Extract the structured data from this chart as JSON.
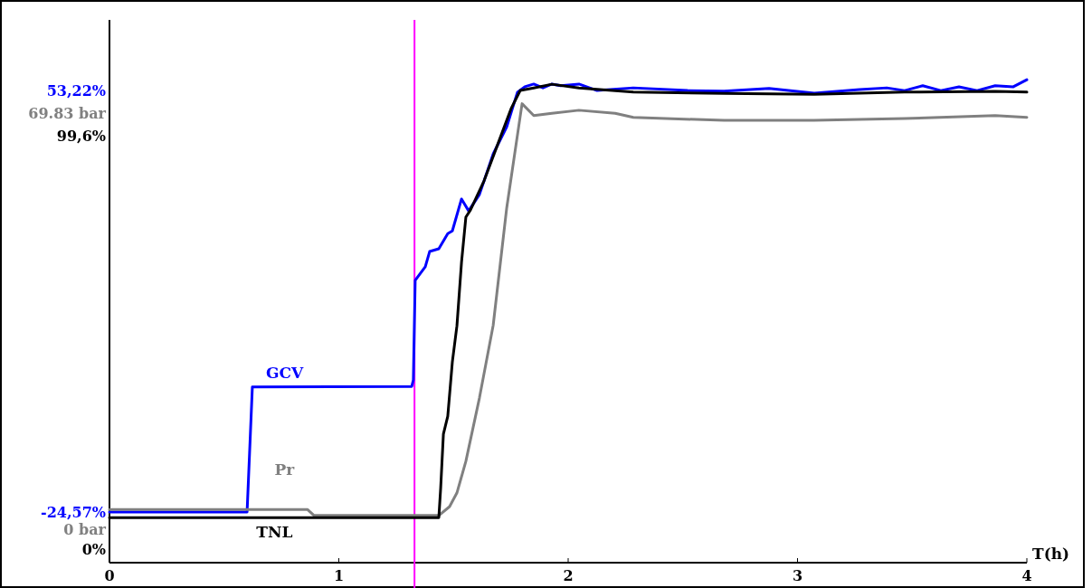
{
  "chart_data": {
    "type": "line",
    "xlabel": "T(h)",
    "xlim": [
      0,
      4
    ],
    "xticks": [
      0,
      1,
      2,
      3,
      4
    ],
    "ylim": [
      -33.58,
      66.24
    ],
    "yticks": [
      {
        "value": -24.57,
        "label": "-24,57%"
      },
      {
        "value": 53.22,
        "label": "53,22%"
      }
    ],
    "y2lim": [
      -5.31,
      85.46
    ],
    "y2ticks": [
      {
        "value": 0,
        "label": "0 bar"
      },
      {
        "value": 69.83,
        "label": "69.83 bar"
      }
    ],
    "y3lim": [
      -2.83,
      127.5
    ],
    "y3ticks": [
      {
        "value": 0,
        "label": "0%"
      },
      {
        "value": 99.6,
        "label": "99,6%"
      }
    ],
    "legend": false,
    "grid": false,
    "ref_lines": [
      {
        "axis": "x",
        "value": 1.33,
        "color": "#ff00ff"
      }
    ],
    "series": [
      {
        "name": "GCV",
        "color": "#0000ff",
        "x": [
          0,
          0.6,
          0.623,
          1.318,
          1.325,
          1.333,
          1.377,
          1.396,
          1.436,
          1.475,
          1.495,
          1.535,
          1.566,
          1.613,
          1.673,
          1.732,
          1.779,
          1.811,
          1.85,
          1.89,
          1.929,
          1.968,
          2.047,
          2.126,
          2.284,
          2.521,
          2.679,
          2.876,
          3.073,
          3.27,
          3.389,
          3.467,
          3.546,
          3.625,
          3.704,
          3.783,
          3.862,
          3.941,
          4.0
        ],
        "values": [
          -24.57,
          -24.57,
          -1.5,
          -1.4,
          -0.2,
          18.2,
          20.7,
          23.5,
          24.0,
          26.8,
          27.3,
          33.2,
          31.0,
          34.0,
          41.5,
          46.5,
          52.9,
          53.9,
          54.4,
          53.7,
          54.4,
          54.1,
          54.4,
          53.2,
          53.7,
          53.2,
          53.1,
          53.6,
          52.7,
          53.4,
          53.7,
          53.2,
          54.1,
          53.2,
          53.9,
          53.2,
          54.1,
          53.9,
          55.2
        ]
      },
      {
        "name": "Pr",
        "color": "#808080",
        "axis": "y2",
        "x": [
          0,
          0.864,
          0.892,
          1.436,
          1.483,
          1.515,
          1.554,
          1.613,
          1.673,
          1.732,
          1.799,
          1.85,
          1.929,
          2.047,
          2.205,
          2.284,
          2.679,
          3.073,
          3.467,
          3.862,
          4.0
        ],
        "values": [
          3.3,
          3.3,
          2.3,
          2.3,
          3.8,
          6.1,
          11.4,
          22.0,
          34.2,
          53.9,
          71.4,
          69.4,
          69.8,
          70.3,
          69.8,
          69.1,
          68.6,
          68.6,
          68.9,
          69.4,
          69.1
        ]
      },
      {
        "name": "TNL",
        "color": "#000000",
        "axis": "y3",
        "x": [
          0,
          1.436,
          1.444,
          1.456,
          1.475,
          1.495,
          1.515,
          1.535,
          1.554,
          1.574,
          1.633,
          1.692,
          1.751,
          1.791,
          1.85,
          1.929,
          2.047,
          2.284,
          2.679,
          3.073,
          3.467,
          3.862,
          4.0
        ],
        "values": [
          7.6,
          7.6,
          14.6,
          27.7,
          32.0,
          45.1,
          53.8,
          69.1,
          80.0,
          81.7,
          88.7,
          97.4,
          106.1,
          110.5,
          111.1,
          112.0,
          111.1,
          110.1,
          109.8,
          109.6,
          110.1,
          110.3,
          110.1
        ]
      }
    ]
  }
}
